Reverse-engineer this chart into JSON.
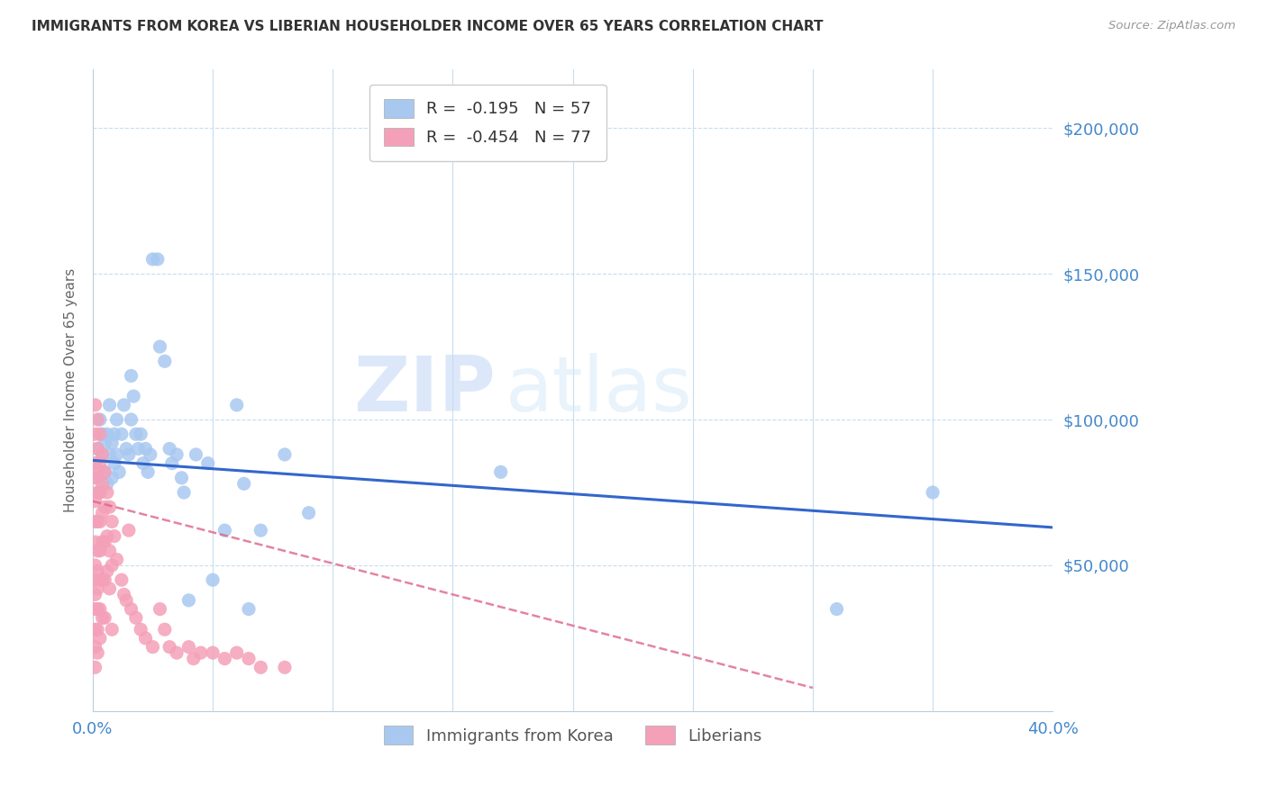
{
  "title": "IMMIGRANTS FROM KOREA VS LIBERIAN HOUSEHOLDER INCOME OVER 65 YEARS CORRELATION CHART",
  "source": "Source: ZipAtlas.com",
  "ylabel": "Householder Income Over 65 years",
  "xlim": [
    0.0,
    0.4
  ],
  "ylim": [
    0,
    220000
  ],
  "yticks": [
    50000,
    100000,
    150000,
    200000
  ],
  "ytick_labels": [
    "$50,000",
    "$100,000",
    "$150,000",
    "$200,000"
  ],
  "korea_color": "#a8c8f0",
  "liberia_color": "#f4a0b8",
  "korea_line_color": "#3366cc",
  "liberia_line_color": "#dd6688",
  "watermark_zip": "ZIP",
  "watermark_atlas": "atlas",
  "legend_korea_R": "-0.195",
  "legend_korea_N": "57",
  "legend_liberia_R": "-0.454",
  "legend_liberia_N": "77",
  "korea_scatter": [
    [
      0.001,
      85000
    ],
    [
      0.002,
      80000
    ],
    [
      0.002,
      90000
    ],
    [
      0.003,
      75000
    ],
    [
      0.003,
      100000
    ],
    [
      0.004,
      88000
    ],
    [
      0.004,
      95000
    ],
    [
      0.005,
      82000
    ],
    [
      0.005,
      92000
    ],
    [
      0.006,
      78000
    ],
    [
      0.006,
      95000
    ],
    [
      0.007,
      88000
    ],
    [
      0.007,
      105000
    ],
    [
      0.008,
      80000
    ],
    [
      0.008,
      92000
    ],
    [
      0.009,
      85000
    ],
    [
      0.009,
      95000
    ],
    [
      0.01,
      88000
    ],
    [
      0.01,
      100000
    ],
    [
      0.011,
      82000
    ],
    [
      0.012,
      95000
    ],
    [
      0.013,
      105000
    ],
    [
      0.014,
      90000
    ],
    [
      0.015,
      88000
    ],
    [
      0.016,
      115000
    ],
    [
      0.016,
      100000
    ],
    [
      0.017,
      108000
    ],
    [
      0.018,
      95000
    ],
    [
      0.019,
      90000
    ],
    [
      0.02,
      95000
    ],
    [
      0.021,
      85000
    ],
    [
      0.022,
      90000
    ],
    [
      0.023,
      82000
    ],
    [
      0.024,
      88000
    ],
    [
      0.025,
      155000
    ],
    [
      0.027,
      155000
    ],
    [
      0.028,
      125000
    ],
    [
      0.03,
      120000
    ],
    [
      0.032,
      90000
    ],
    [
      0.033,
      85000
    ],
    [
      0.035,
      88000
    ],
    [
      0.037,
      80000
    ],
    [
      0.038,
      75000
    ],
    [
      0.04,
      38000
    ],
    [
      0.043,
      88000
    ],
    [
      0.048,
      85000
    ],
    [
      0.05,
      45000
    ],
    [
      0.055,
      62000
    ],
    [
      0.06,
      105000
    ],
    [
      0.063,
      78000
    ],
    [
      0.065,
      35000
    ],
    [
      0.07,
      62000
    ],
    [
      0.08,
      88000
    ],
    [
      0.09,
      68000
    ],
    [
      0.17,
      82000
    ],
    [
      0.31,
      35000
    ],
    [
      0.35,
      75000
    ]
  ],
  "liberia_scatter": [
    [
      0.001,
      105000
    ],
    [
      0.001,
      95000
    ],
    [
      0.001,
      85000
    ],
    [
      0.001,
      80000
    ],
    [
      0.001,
      72000
    ],
    [
      0.001,
      65000
    ],
    [
      0.001,
      58000
    ],
    [
      0.001,
      50000
    ],
    [
      0.001,
      45000
    ],
    [
      0.001,
      40000
    ],
    [
      0.001,
      35000
    ],
    [
      0.001,
      28000
    ],
    [
      0.001,
      22000
    ],
    [
      0.001,
      15000
    ],
    [
      0.002,
      100000
    ],
    [
      0.002,
      90000
    ],
    [
      0.002,
      82000
    ],
    [
      0.002,
      75000
    ],
    [
      0.002,
      65000
    ],
    [
      0.002,
      55000
    ],
    [
      0.002,
      48000
    ],
    [
      0.002,
      42000
    ],
    [
      0.002,
      35000
    ],
    [
      0.002,
      28000
    ],
    [
      0.002,
      20000
    ],
    [
      0.003,
      95000
    ],
    [
      0.003,
      85000
    ],
    [
      0.003,
      75000
    ],
    [
      0.003,
      65000
    ],
    [
      0.003,
      55000
    ],
    [
      0.003,
      45000
    ],
    [
      0.003,
      35000
    ],
    [
      0.003,
      25000
    ],
    [
      0.004,
      88000
    ],
    [
      0.004,
      78000
    ],
    [
      0.004,
      68000
    ],
    [
      0.004,
      58000
    ],
    [
      0.004,
      45000
    ],
    [
      0.004,
      32000
    ],
    [
      0.005,
      82000
    ],
    [
      0.005,
      70000
    ],
    [
      0.005,
      58000
    ],
    [
      0.005,
      45000
    ],
    [
      0.005,
      32000
    ],
    [
      0.006,
      75000
    ],
    [
      0.006,
      60000
    ],
    [
      0.006,
      48000
    ],
    [
      0.007,
      70000
    ],
    [
      0.007,
      55000
    ],
    [
      0.007,
      42000
    ],
    [
      0.008,
      65000
    ],
    [
      0.008,
      50000
    ],
    [
      0.008,
      28000
    ],
    [
      0.009,
      60000
    ],
    [
      0.01,
      52000
    ],
    [
      0.012,
      45000
    ],
    [
      0.013,
      40000
    ],
    [
      0.014,
      38000
    ],
    [
      0.015,
      62000
    ],
    [
      0.016,
      35000
    ],
    [
      0.018,
      32000
    ],
    [
      0.02,
      28000
    ],
    [
      0.022,
      25000
    ],
    [
      0.025,
      22000
    ],
    [
      0.028,
      35000
    ],
    [
      0.03,
      28000
    ],
    [
      0.032,
      22000
    ],
    [
      0.035,
      20000
    ],
    [
      0.04,
      22000
    ],
    [
      0.042,
      18000
    ],
    [
      0.045,
      20000
    ],
    [
      0.05,
      20000
    ],
    [
      0.055,
      18000
    ],
    [
      0.06,
      20000
    ],
    [
      0.065,
      18000
    ],
    [
      0.07,
      15000
    ],
    [
      0.08,
      15000
    ]
  ]
}
